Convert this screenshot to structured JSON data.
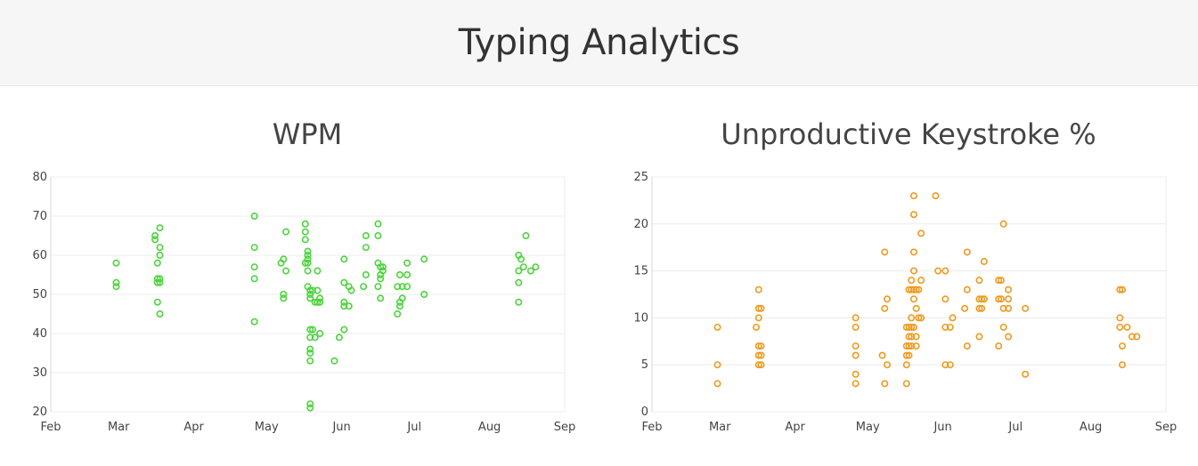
{
  "page": {
    "title": "Typing Analytics"
  },
  "chart_data": [
    {
      "id": "wpm",
      "type": "scatter",
      "title": "WPM",
      "color": "#4dd43d",
      "xlim": [
        "2015-02-01",
        "2015-09-01"
      ],
      "ylim": [
        20,
        80
      ],
      "yticks": [
        20,
        30,
        40,
        50,
        60,
        70,
        80
      ],
      "xticks": [
        {
          "date": "2015-02-01",
          "label": "Feb"
        },
        {
          "date": "2015-03-01",
          "label": "Mar"
        },
        {
          "date": "2015-04-01",
          "label": "Apr"
        },
        {
          "date": "2015-05-01",
          "label": "May"
        },
        {
          "date": "2015-06-01",
          "label": "Jun"
        },
        {
          "date": "2015-07-01",
          "label": "Jul"
        },
        {
          "date": "2015-08-01",
          "label": "Aug"
        },
        {
          "date": "2015-09-01",
          "label": "Sep"
        }
      ],
      "grid": true,
      "points": [
        [
          "2015-02-28",
          58
        ],
        [
          "2015-02-28",
          53
        ],
        [
          "2015-02-28",
          52
        ],
        [
          "2015-03-16",
          65
        ],
        [
          "2015-03-16",
          64
        ],
        [
          "2015-03-17",
          58
        ],
        [
          "2015-03-17",
          54
        ],
        [
          "2015-03-17",
          53
        ],
        [
          "2015-03-17",
          48
        ],
        [
          "2015-03-18",
          67
        ],
        [
          "2015-03-18",
          62
        ],
        [
          "2015-03-18",
          60
        ],
        [
          "2015-03-18",
          54
        ],
        [
          "2015-03-18",
          53
        ],
        [
          "2015-03-18",
          45
        ],
        [
          "2015-04-26",
          70
        ],
        [
          "2015-04-26",
          62
        ],
        [
          "2015-04-26",
          57
        ],
        [
          "2015-04-26",
          54
        ],
        [
          "2015-04-26",
          43
        ],
        [
          "2015-05-07",
          58
        ],
        [
          "2015-05-08",
          59
        ],
        [
          "2015-05-08",
          50
        ],
        [
          "2015-05-08",
          49
        ],
        [
          "2015-05-09",
          66
        ],
        [
          "2015-05-09",
          56
        ],
        [
          "2015-05-17",
          68
        ],
        [
          "2015-05-17",
          66
        ],
        [
          "2015-05-17",
          64
        ],
        [
          "2015-05-17",
          58
        ],
        [
          "2015-05-18",
          61
        ],
        [
          "2015-05-18",
          60
        ],
        [
          "2015-05-18",
          59
        ],
        [
          "2015-05-18",
          58
        ],
        [
          "2015-05-18",
          56
        ],
        [
          "2015-05-18",
          52
        ],
        [
          "2015-05-19",
          51
        ],
        [
          "2015-05-19",
          50
        ],
        [
          "2015-05-19",
          49
        ],
        [
          "2015-05-19",
          41
        ],
        [
          "2015-05-19",
          39
        ],
        [
          "2015-05-19",
          36
        ],
        [
          "2015-05-19",
          35
        ],
        [
          "2015-05-19",
          33
        ],
        [
          "2015-05-19",
          22
        ],
        [
          "2015-05-19",
          21
        ],
        [
          "2015-05-20",
          51
        ],
        [
          "2015-05-20",
          41
        ],
        [
          "2015-05-21",
          48
        ],
        [
          "2015-05-21",
          39
        ],
        [
          "2015-05-22",
          56
        ],
        [
          "2015-05-22",
          51
        ],
        [
          "2015-05-22",
          48
        ],
        [
          "2015-05-23",
          49
        ],
        [
          "2015-05-23",
          48
        ],
        [
          "2015-05-23",
          40
        ],
        [
          "2015-05-29",
          33
        ],
        [
          "2015-05-31",
          39
        ],
        [
          "2015-06-02",
          59
        ],
        [
          "2015-06-02",
          53
        ],
        [
          "2015-06-02",
          48
        ],
        [
          "2015-06-02",
          47
        ],
        [
          "2015-06-02",
          41
        ],
        [
          "2015-06-04",
          52
        ],
        [
          "2015-06-04",
          47
        ],
        [
          "2015-06-05",
          51
        ],
        [
          "2015-06-10",
          52
        ],
        [
          "2015-06-11",
          65
        ],
        [
          "2015-06-11",
          62
        ],
        [
          "2015-06-11",
          55
        ],
        [
          "2015-06-16",
          68
        ],
        [
          "2015-06-16",
          65
        ],
        [
          "2015-06-16",
          58
        ],
        [
          "2015-06-16",
          52
        ],
        [
          "2015-06-17",
          57
        ],
        [
          "2015-06-17",
          55
        ],
        [
          "2015-06-17",
          54
        ],
        [
          "2015-06-17",
          49
        ],
        [
          "2015-06-18",
          57
        ],
        [
          "2015-06-18",
          56
        ],
        [
          "2015-06-24",
          52
        ],
        [
          "2015-06-24",
          45
        ],
        [
          "2015-06-25",
          55
        ],
        [
          "2015-06-25",
          48
        ],
        [
          "2015-06-25",
          47
        ],
        [
          "2015-06-26",
          52
        ],
        [
          "2015-06-26",
          49
        ],
        [
          "2015-06-28",
          58
        ],
        [
          "2015-06-28",
          55
        ],
        [
          "2015-06-28",
          52
        ],
        [
          "2015-07-05",
          59
        ],
        [
          "2015-07-05",
          50
        ],
        [
          "2015-08-13",
          60
        ],
        [
          "2015-08-13",
          56
        ],
        [
          "2015-08-13",
          53
        ],
        [
          "2015-08-13",
          48
        ],
        [
          "2015-08-14",
          59
        ],
        [
          "2015-08-15",
          57
        ],
        [
          "2015-08-16",
          65
        ],
        [
          "2015-08-18",
          56
        ],
        [
          "2015-08-20",
          57
        ]
      ]
    },
    {
      "id": "unproductive",
      "type": "scatter",
      "title": "Unproductive Keystroke %",
      "color": "#ee9a1f",
      "xlim": [
        "2015-02-01",
        "2015-09-01"
      ],
      "ylim": [
        0,
        25
      ],
      "yticks": [
        0,
        5,
        10,
        15,
        20,
        25
      ],
      "xticks": [
        {
          "date": "2015-02-01",
          "label": "Feb"
        },
        {
          "date": "2015-03-01",
          "label": "Mar"
        },
        {
          "date": "2015-04-01",
          "label": "Apr"
        },
        {
          "date": "2015-05-01",
          "label": "May"
        },
        {
          "date": "2015-06-01",
          "label": "Jun"
        },
        {
          "date": "2015-07-01",
          "label": "Jul"
        },
        {
          "date": "2015-08-01",
          "label": "Aug"
        },
        {
          "date": "2015-09-01",
          "label": "Sep"
        }
      ],
      "grid": true,
      "points": [
        [
          "2015-02-28",
          9
        ],
        [
          "2015-02-28",
          5
        ],
        [
          "2015-02-28",
          3
        ],
        [
          "2015-03-16",
          9
        ],
        [
          "2015-03-17",
          13
        ],
        [
          "2015-03-17",
          11
        ],
        [
          "2015-03-17",
          10
        ],
        [
          "2015-03-17",
          7
        ],
        [
          "2015-03-17",
          6
        ],
        [
          "2015-03-17",
          5
        ],
        [
          "2015-03-18",
          11
        ],
        [
          "2015-03-18",
          7
        ],
        [
          "2015-03-18",
          6
        ],
        [
          "2015-03-18",
          5
        ],
        [
          "2015-04-26",
          10
        ],
        [
          "2015-04-26",
          9
        ],
        [
          "2015-04-26",
          7
        ],
        [
          "2015-04-26",
          6
        ],
        [
          "2015-04-26",
          4
        ],
        [
          "2015-04-26",
          3
        ],
        [
          "2015-05-07",
          6
        ],
        [
          "2015-05-08",
          17
        ],
        [
          "2015-05-08",
          11
        ],
        [
          "2015-05-08",
          3
        ],
        [
          "2015-05-09",
          12
        ],
        [
          "2015-05-09",
          5
        ],
        [
          "2015-05-17",
          9
        ],
        [
          "2015-05-17",
          7
        ],
        [
          "2015-05-17",
          6
        ],
        [
          "2015-05-17",
          5
        ],
        [
          "2015-05-17",
          3
        ],
        [
          "2015-05-18",
          13
        ],
        [
          "2015-05-18",
          9
        ],
        [
          "2015-05-18",
          8
        ],
        [
          "2015-05-18",
          7
        ],
        [
          "2015-05-18",
          6
        ],
        [
          "2015-05-19",
          14
        ],
        [
          "2015-05-19",
          13
        ],
        [
          "2015-05-19",
          10
        ],
        [
          "2015-05-19",
          9
        ],
        [
          "2015-05-19",
          8
        ],
        [
          "2015-05-19",
          7
        ],
        [
          "2015-05-20",
          23
        ],
        [
          "2015-05-20",
          21
        ],
        [
          "2015-05-20",
          17
        ],
        [
          "2015-05-20",
          15
        ],
        [
          "2015-05-20",
          13
        ],
        [
          "2015-05-20",
          12
        ],
        [
          "2015-05-20",
          9
        ],
        [
          "2015-05-21",
          13
        ],
        [
          "2015-05-21",
          11
        ],
        [
          "2015-05-21",
          8
        ],
        [
          "2015-05-21",
          7
        ],
        [
          "2015-05-22",
          13
        ],
        [
          "2015-05-22",
          10
        ],
        [
          "2015-05-23",
          19
        ],
        [
          "2015-05-23",
          14
        ],
        [
          "2015-05-23",
          10
        ],
        [
          "2015-05-29",
          23
        ],
        [
          "2015-05-30",
          15
        ],
        [
          "2015-06-02",
          15
        ],
        [
          "2015-06-02",
          12
        ],
        [
          "2015-06-02",
          9
        ],
        [
          "2015-06-02",
          5
        ],
        [
          "2015-06-04",
          9
        ],
        [
          "2015-06-04",
          5
        ],
        [
          "2015-06-05",
          10
        ],
        [
          "2015-06-10",
          11
        ],
        [
          "2015-06-11",
          17
        ],
        [
          "2015-06-11",
          13
        ],
        [
          "2015-06-11",
          7
        ],
        [
          "2015-06-16",
          14
        ],
        [
          "2015-06-16",
          12
        ],
        [
          "2015-06-16",
          11
        ],
        [
          "2015-06-16",
          8
        ],
        [
          "2015-06-17",
          12
        ],
        [
          "2015-06-17",
          11
        ],
        [
          "2015-06-18",
          16
        ],
        [
          "2015-06-18",
          12
        ],
        [
          "2015-06-24",
          14
        ],
        [
          "2015-06-24",
          12
        ],
        [
          "2015-06-24",
          7
        ],
        [
          "2015-06-25",
          14
        ],
        [
          "2015-06-25",
          12
        ],
        [
          "2015-06-26",
          20
        ],
        [
          "2015-06-26",
          11
        ],
        [
          "2015-06-26",
          9
        ],
        [
          "2015-06-28",
          13
        ],
        [
          "2015-06-28",
          12
        ],
        [
          "2015-06-28",
          11
        ],
        [
          "2015-06-28",
          8
        ],
        [
          "2015-07-05",
          11
        ],
        [
          "2015-07-05",
          4
        ],
        [
          "2015-08-13",
          13
        ],
        [
          "2015-08-13",
          10
        ],
        [
          "2015-08-13",
          9
        ],
        [
          "2015-08-14",
          13
        ],
        [
          "2015-08-14",
          7
        ],
        [
          "2015-08-14",
          5
        ],
        [
          "2015-08-16",
          9
        ],
        [
          "2015-08-18",
          8
        ],
        [
          "2015-08-20",
          8
        ]
      ]
    }
  ]
}
